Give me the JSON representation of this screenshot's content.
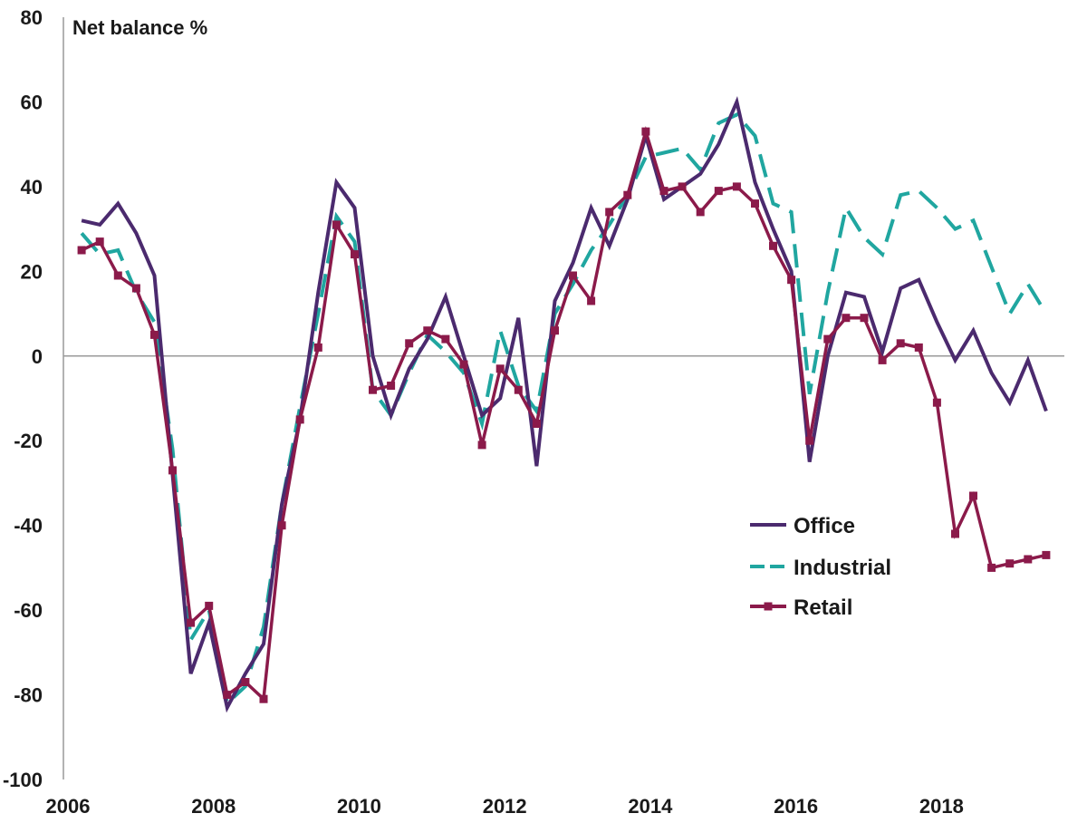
{
  "chart_data": {
    "type": "line",
    "ylabel": "Net balance %",
    "ylim": [
      -100,
      80
    ],
    "yticks": [
      -100,
      -80,
      -60,
      -40,
      -20,
      0,
      20,
      40,
      60,
      80
    ],
    "xlim": [
      2006,
      2019.75
    ],
    "xticks": [
      2006,
      2008,
      2010,
      2012,
      2014,
      2016,
      2018
    ],
    "legend_position": "lower-right",
    "x": [
      2006.25,
      2006.5,
      2006.75,
      2007.0,
      2007.25,
      2007.5,
      2007.75,
      2008.0,
      2008.25,
      2008.5,
      2008.75,
      2009.0,
      2009.25,
      2009.5,
      2009.75,
      2010.0,
      2010.25,
      2010.5,
      2010.75,
      2011.0,
      2011.25,
      2011.5,
      2011.75,
      2012.0,
      2012.25,
      2012.5,
      2012.75,
      2013.0,
      2013.25,
      2013.5,
      2013.75,
      2014.0,
      2014.25,
      2014.5,
      2014.75,
      2015.0,
      2015.25,
      2015.5,
      2015.75,
      2016.0,
      2016.25,
      2016.5,
      2016.75,
      2017.0,
      2017.25,
      2017.5,
      2017.75,
      2018.0,
      2018.25,
      2018.5,
      2018.75,
      2019.0,
      2019.25,
      2019.5
    ],
    "series": [
      {
        "name": "Office",
        "color": "#4b2a6e",
        "dash": "solid",
        "marker": "none",
        "values": [
          32,
          31,
          36,
          29,
          19,
          -28,
          -75,
          -63,
          -83,
          -75,
          -68,
          -35,
          -15,
          15,
          41,
          35,
          0,
          -14,
          -3,
          4,
          14,
          0,
          -14,
          -10,
          9,
          -26,
          13,
          22,
          35,
          26,
          37,
          52,
          37,
          40,
          43,
          50,
          60,
          41,
          30,
          20,
          -25,
          0,
          15,
          14,
          1,
          16,
          18,
          8,
          -1,
          6,
          -4,
          -11,
          -1,
          -13
        ]
      },
      {
        "name": "Industrial",
        "color": "#20a6a0",
        "dash": "dashed",
        "marker": "none",
        "values": [
          29,
          24,
          25,
          15,
          8,
          -22,
          -67,
          -60,
          -82,
          -78,
          -64,
          -35,
          -12,
          10,
          33,
          27,
          -8,
          -14,
          -4,
          5,
          1,
          -4,
          -16,
          6,
          -7,
          -13,
          10,
          17,
          25,
          31,
          38,
          47,
          48,
          49,
          44,
          55,
          57,
          52,
          36,
          34,
          -9,
          15,
          35,
          28,
          24,
          38,
          39,
          35,
          30,
          32,
          21,
          10,
          17,
          10
        ]
      },
      {
        "name": "Retail",
        "color": "#8b1a4a",
        "dash": "solid",
        "marker": "square",
        "values": [
          25,
          27,
          19,
          16,
          5,
          -27,
          -63,
          -59,
          -80,
          -77,
          -81,
          -40,
          -15,
          2,
          31,
          24,
          -8,
          -7,
          3,
          6,
          4,
          -2,
          -21,
          -3,
          -8,
          -16,
          6,
          19,
          13,
          34,
          38,
          53,
          39,
          40,
          34,
          39,
          40,
          36,
          26,
          18,
          -20,
          4,
          9,
          9,
          -1,
          3,
          2,
          -11,
          -42,
          -33,
          -50,
          -49,
          -48,
          -47
        ]
      }
    ]
  }
}
